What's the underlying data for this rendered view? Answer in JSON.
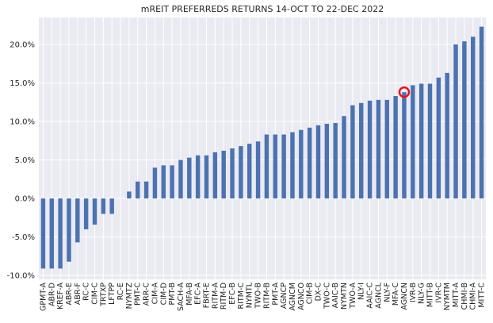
{
  "chart_data": {
    "type": "bar",
    "title": "mREIT PREFERREDS RETURNS 14-OCT TO 22-DEC 2022",
    "xlabel": "",
    "ylabel": "",
    "ylim": [
      -0.105,
      0.235
    ],
    "yticks": [
      -0.1,
      -0.05,
      0.0,
      0.05,
      0.1,
      0.15,
      0.2
    ],
    "ytick_labels": [
      "-10.0%",
      "-5.0%",
      "0.0%",
      "5.0%",
      "10.0%",
      "15.0%",
      "20.0%"
    ],
    "grid": true,
    "legend": "none",
    "bar_color": "#4c72b0",
    "background": "#eaeaf2",
    "highlight_color": "#e8131c",
    "highlight_category": "AGNCN",
    "categories": [
      "GPMT-A",
      "ABR-D",
      "KREF-A",
      "ABR-E",
      "ABR-F",
      "RC-C",
      "CIM-C",
      "TRTXP",
      "LFTPP",
      "RC-E",
      "NYMTZ",
      "PMT-C",
      "ARR-C",
      "CIM-A",
      "CIM-D",
      "PMT-B",
      "SACH-A",
      "MFA-B",
      "EFC-A",
      "FBRT-E",
      "RITM-A",
      "RITM-D",
      "EFC-B",
      "RITM-C",
      "NYMTL",
      "TWO-B",
      "RITM-B",
      "PMT-A",
      "AGNCP",
      "AGNCM",
      "AGNCO",
      "CIM-B",
      "DX-C",
      "TWO-C",
      "AAIC-B",
      "NYMTN",
      "TWO-A",
      "NLY-I",
      "AAIC-C",
      "AGNCL",
      "NLY-F",
      "MFA-C",
      "AGNCN",
      "IVR-B",
      "NLY-G",
      "MITT-B",
      "IVR-C",
      "NYMTM",
      "MITT-A",
      "CHMI-B",
      "CHMI-A",
      "MITT-C"
    ],
    "values": [
      -0.091,
      -0.091,
      -0.091,
      -0.082,
      -0.057,
      -0.04,
      -0.034,
      -0.02,
      -0.02,
      0.0,
      0.009,
      0.022,
      0.022,
      0.04,
      0.043,
      0.043,
      0.05,
      0.053,
      0.056,
      0.056,
      0.06,
      0.062,
      0.065,
      0.068,
      0.071,
      0.074,
      0.083,
      0.083,
      0.083,
      0.086,
      0.089,
      0.092,
      0.095,
      0.097,
      0.098,
      0.107,
      0.121,
      0.124,
      0.127,
      0.128,
      0.128,
      0.133,
      0.138,
      0.147,
      0.149,
      0.149,
      0.157,
      0.163,
      0.2,
      0.204,
      0.21,
      0.223
    ]
  }
}
